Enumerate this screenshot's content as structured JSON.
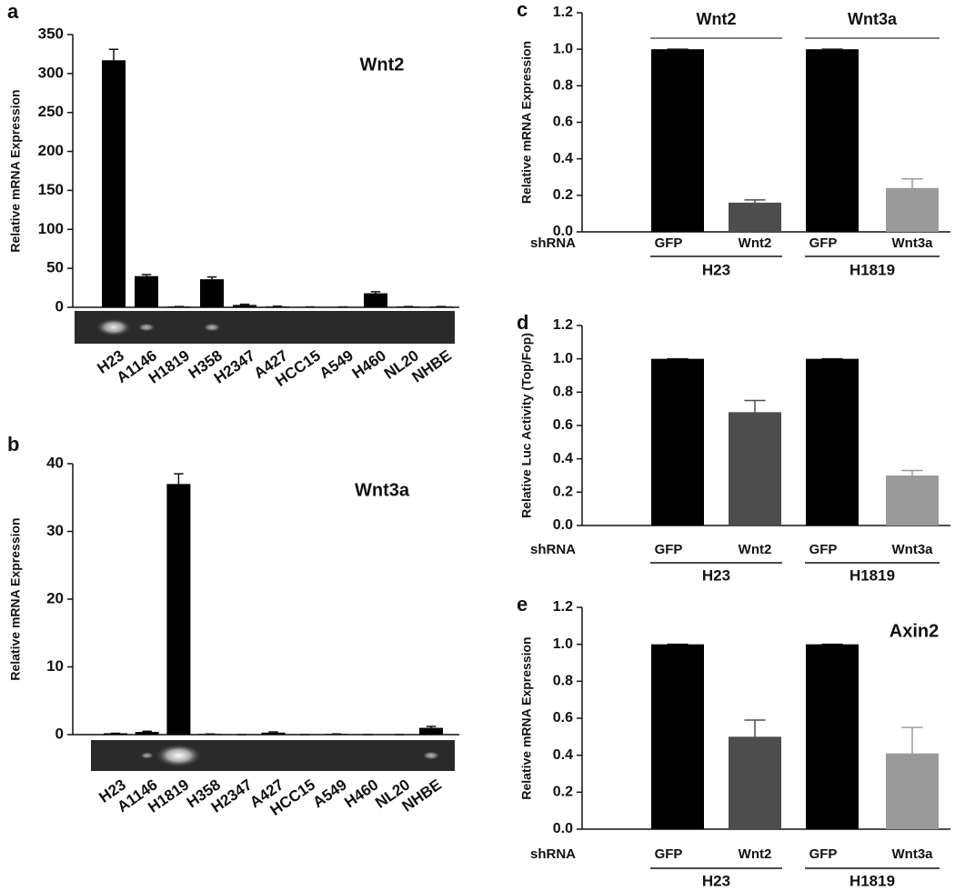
{
  "chart_data": [
    {
      "type": "bar",
      "panel_label": "a",
      "title": "Wnt2",
      "y_label": "Relative mRNA Expression",
      "categories": [
        "H23",
        "A1146",
        "H1819",
        "H358",
        "H2347",
        "A427",
        "HCC15",
        "A549",
        "H460",
        "NL20",
        "NHBE"
      ],
      "values": [
        317,
        40,
        1,
        36,
        3,
        1,
        0.5,
        0.5,
        18,
        1,
        1
      ],
      "errors": [
        14,
        2,
        0,
        3,
        1,
        0.5,
        0,
        0,
        2,
        0,
        0
      ],
      "color": "#000000",
      "ylim": [
        0,
        350
      ],
      "yticks": [
        0,
        50,
        100,
        150,
        200,
        250,
        300,
        350
      ]
    },
    {
      "type": "bar",
      "panel_label": "b",
      "title": "Wnt3a",
      "y_label": "Relative mRNA Expression",
      "categories": [
        "H23",
        "A1146",
        "H1819",
        "H358",
        "H2347",
        "A427",
        "HCC15",
        "A549",
        "H460",
        "NL20",
        "NHBE"
      ],
      "values": [
        0.2,
        0.4,
        37,
        0.1,
        0,
        0.3,
        0,
        0.1,
        0,
        0,
        1
      ],
      "errors": [
        0,
        0.1,
        1.5,
        0,
        0,
        0.1,
        0,
        0,
        0,
        0,
        0.2
      ],
      "color": "#000000",
      "ylim": [
        0,
        40
      ],
      "yticks": [
        0,
        10,
        20,
        30,
        40
      ]
    },
    {
      "type": "bar",
      "panel_label": "c",
      "y_label": "Relative mRNA Expression",
      "row_label": "shRNA",
      "categories": [
        "GFP",
        "Wnt2",
        "GFP",
        "Wnt3a"
      ],
      "group_labels": [
        "H23",
        "H1819"
      ],
      "header_labels": [
        "Wnt2",
        "Wnt3a"
      ],
      "values": [
        1,
        0.16,
        1,
        0.24
      ],
      "errors": [
        0,
        0.015,
        0,
        0.05
      ],
      "colors": [
        "#000000",
        "#4d4d4d",
        "#000000",
        "#9a9a9a"
      ],
      "ylim": [
        0,
        1.2
      ],
      "yticks": [
        {
          "value": 0,
          "label": "0.0"
        },
        0.2,
        0.4,
        0.6,
        0.8,
        {
          "value": 1,
          "label": "1.0"
        },
        1.2
      ]
    },
    {
      "type": "bar",
      "panel_label": "d",
      "y_label": "Relative Luc Activity (Top/Fop)",
      "row_label": "shRNA",
      "categories": [
        "GFP",
        "Wnt2",
        "GFP",
        "Wnt3a"
      ],
      "group_labels": [
        "H23",
        "H1819"
      ],
      "values": [
        1,
        0.68,
        1,
        0.3
      ],
      "errors": [
        0,
        0.07,
        0,
        0.03
      ],
      "colors": [
        "#000000",
        "#4d4d4d",
        "#000000",
        "#9a9a9a"
      ],
      "ylim": [
        0,
        1.2
      ],
      "yticks": [
        {
          "value": 0,
          "label": "0.0"
        },
        0.2,
        0.4,
        0.6,
        0.8,
        {
          "value": 1,
          "label": "1.0"
        },
        1.2
      ]
    },
    {
      "type": "bar",
      "panel_label": "e",
      "title": "Axin2",
      "y_label": "Relative mRNA Expression",
      "row_label": "shRNA",
      "categories": [
        "GFP",
        "Wnt2",
        "GFP",
        "Wnt3a"
      ],
      "group_labels": [
        "H23",
        "H1819"
      ],
      "values": [
        1,
        0.5,
        1,
        0.41
      ],
      "errors": [
        0,
        0.09,
        0,
        0.14
      ],
      "colors": [
        "#000000",
        "#4d4d4d",
        "#000000",
        "#9a9a9a"
      ],
      "ylim": [
        0,
        1.2
      ],
      "yticks": [
        {
          "value": 0,
          "label": "0.0"
        },
        0.2,
        0.4,
        0.6,
        0.8,
        {
          "value": 1,
          "label": "1.0"
        },
        1.2
      ]
    }
  ]
}
